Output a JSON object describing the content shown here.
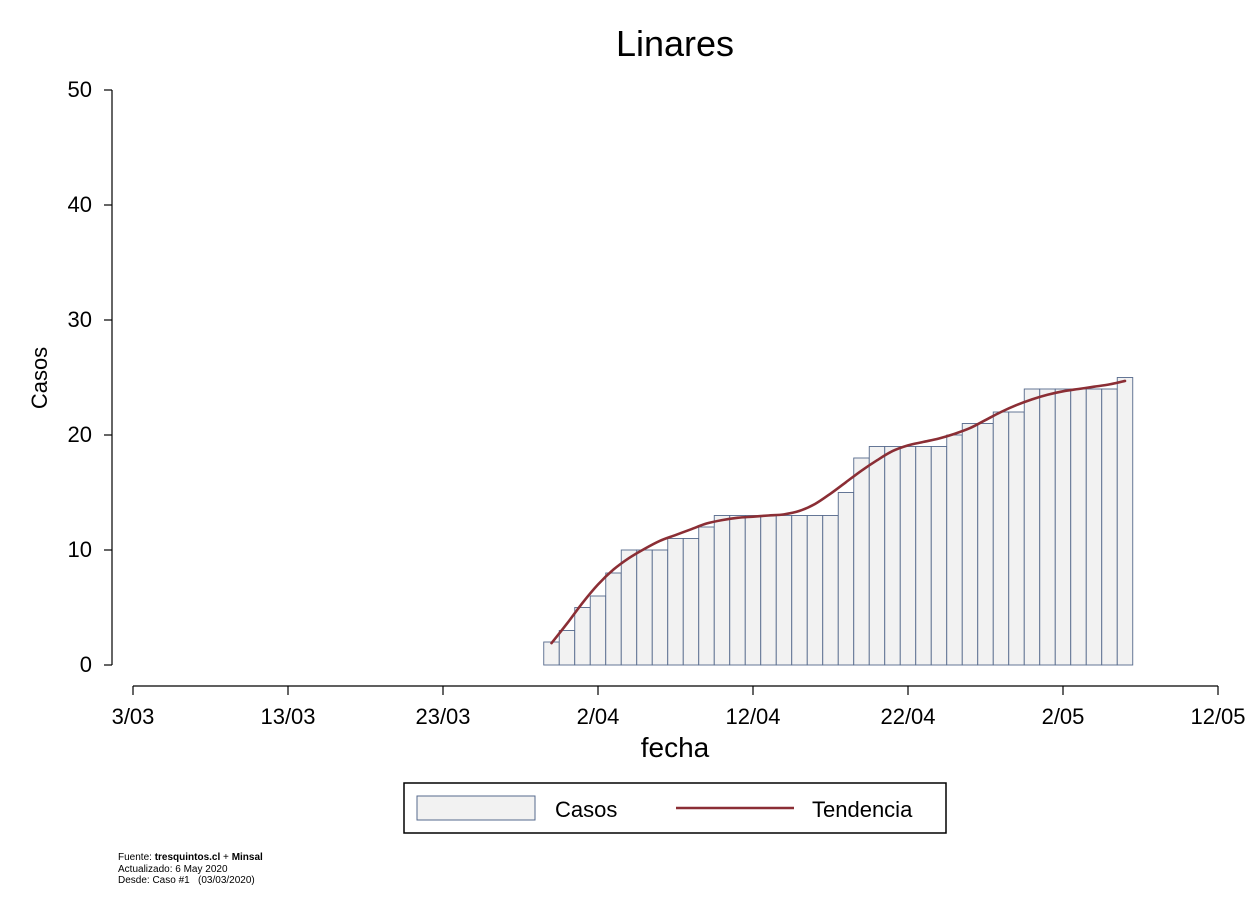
{
  "chart_data": {
    "type": "bar",
    "title": "Linares",
    "xlabel": "fecha",
    "ylabel": "Casos",
    "x_ticks": [
      "3/03",
      "13/03",
      "23/03",
      "2/04",
      "12/04",
      "22/04",
      "2/05",
      "12/05"
    ],
    "y_ticks": [
      "0",
      "10",
      "20",
      "30",
      "40",
      "50"
    ],
    "ylim": [
      0,
      50
    ],
    "xlim": [
      "2020-03-03",
      "2020-05-12"
    ],
    "grid": false,
    "legend_position": "bottom",
    "series": [
      {
        "name": "Casos",
        "kind": "bar",
        "x": [
          "2020-03-30",
          "2020-03-31",
          "2020-04-01",
          "2020-04-02",
          "2020-04-03",
          "2020-04-04",
          "2020-04-05",
          "2020-04-06",
          "2020-04-07",
          "2020-04-08",
          "2020-04-09",
          "2020-04-10",
          "2020-04-11",
          "2020-04-12",
          "2020-04-13",
          "2020-04-14",
          "2020-04-15",
          "2020-04-16",
          "2020-04-17",
          "2020-04-18",
          "2020-04-19",
          "2020-04-20",
          "2020-04-21",
          "2020-04-22",
          "2020-04-23",
          "2020-04-24",
          "2020-04-25",
          "2020-04-26",
          "2020-04-27",
          "2020-04-28",
          "2020-04-29",
          "2020-04-30",
          "2020-05-01",
          "2020-05-02",
          "2020-05-03",
          "2020-05-04",
          "2020-05-05",
          "2020-05-06"
        ],
        "values": [
          2,
          3,
          5,
          6,
          8,
          10,
          10,
          10,
          11,
          11,
          12,
          13,
          13,
          13,
          13,
          13,
          13,
          13,
          13,
          15,
          18,
          19,
          19,
          19,
          19,
          19,
          20,
          21,
          21,
          22,
          22,
          24,
          24,
          24,
          24,
          24,
          24,
          25
        ]
      },
      {
        "name": "Tendencia",
        "kind": "line",
        "x": [
          "2020-03-30",
          "2020-03-31",
          "2020-04-01",
          "2020-04-02",
          "2020-04-03",
          "2020-04-04",
          "2020-04-05",
          "2020-04-06",
          "2020-04-07",
          "2020-04-08",
          "2020-04-09",
          "2020-04-10",
          "2020-04-11",
          "2020-04-12",
          "2020-04-13",
          "2020-04-14",
          "2020-04-15",
          "2020-04-16",
          "2020-04-17",
          "2020-04-18",
          "2020-04-19",
          "2020-04-20",
          "2020-04-21",
          "2020-04-22",
          "2020-04-23",
          "2020-04-24",
          "2020-04-25",
          "2020-04-26",
          "2020-04-27",
          "2020-04-28",
          "2020-04-29",
          "2020-04-30",
          "2020-05-01",
          "2020-05-02",
          "2020-05-03",
          "2020-05-04",
          "2020-05-05",
          "2020-05-06"
        ],
        "values": [
          1.9,
          3.6,
          5.4,
          7.0,
          8.3,
          9.3,
          10.1,
          10.8,
          11.3,
          11.8,
          12.3,
          12.6,
          12.8,
          12.9,
          13.0,
          13.1,
          13.4,
          14.0,
          14.9,
          15.9,
          16.9,
          17.8,
          18.6,
          19.1,
          19.4,
          19.7,
          20.1,
          20.6,
          21.3,
          22.0,
          22.6,
          23.1,
          23.5,
          23.8,
          24.0,
          24.2,
          24.4,
          24.7
        ]
      }
    ],
    "colors": {
      "bar_fill": "#f2f2f2",
      "bar_edge": "#55698c",
      "line": "#8b2e35"
    }
  },
  "legend": {
    "bars_label": "Casos",
    "line_label": "Tendencia"
  },
  "footer": {
    "source_prefix": "Fuente: ",
    "source_main": "tresquintos.cl",
    "source_sep": " + ",
    "source_second": "Minsal",
    "updated": "Actualizado: 6 May 2020",
    "since": "Desde: Caso #1   (03/03/2020)"
  }
}
